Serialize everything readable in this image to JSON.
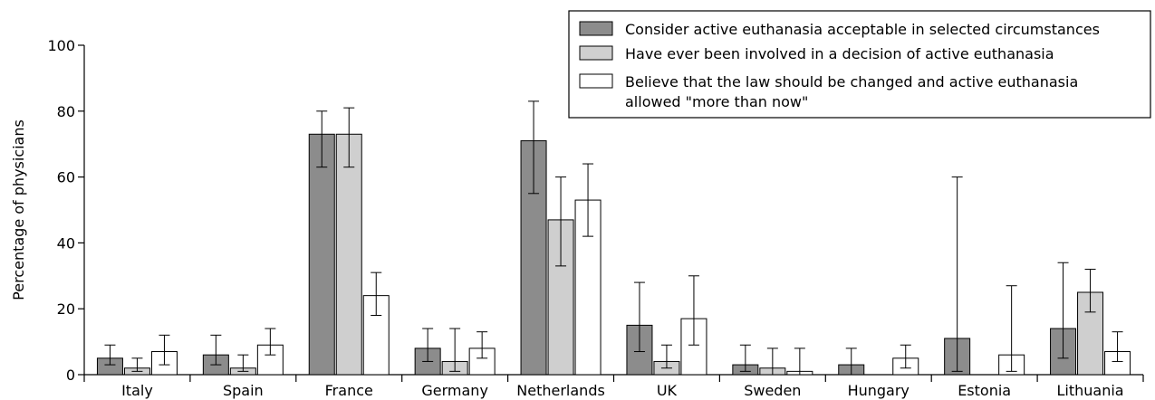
{
  "chart_data": {
    "type": "bar",
    "ylabel": "Percentage of physicians",
    "xlabel": "",
    "ylim": [
      0,
      100
    ],
    "yticks": [
      0,
      20,
      40,
      60,
      80,
      100
    ],
    "legend_placement": "top-right",
    "categories": [
      "Italy",
      "Spain",
      "France",
      "Germany",
      "Netherlands",
      "UK",
      "Sweden",
      "Hungary",
      "Estonia",
      "Lithuania"
    ],
    "series": [
      {
        "name": "Consider active euthanasia acceptable in selected circumstances",
        "color": "#8c8c8c",
        "values": [
          5,
          6,
          73,
          8,
          71,
          15,
          3,
          3,
          11,
          14
        ],
        "err_low": [
          3,
          3,
          63,
          4,
          55,
          7,
          1,
          0,
          1,
          5
        ],
        "err_high": [
          9,
          12,
          80,
          14,
          83,
          28,
          9,
          8,
          60,
          34
        ]
      },
      {
        "name": "Have ever been involved in a decision of active euthanasia",
        "color": "#cfcfcf",
        "values": [
          2,
          2,
          73,
          4,
          47,
          4,
          2,
          0,
          0,
          25
        ],
        "err_low": [
          1,
          1,
          63,
          1,
          33,
          2,
          0,
          null,
          null,
          19
        ],
        "err_high": [
          5,
          6,
          81,
          14,
          60,
          9,
          8,
          null,
          null,
          32
        ]
      },
      {
        "name": "Believe that the law should be changed and active euthanasia allowed \"more than now\"",
        "color": "#ffffff",
        "values": [
          7,
          9,
          24,
          8,
          53,
          17,
          1,
          5,
          6,
          7
        ],
        "err_low": [
          3,
          6,
          18,
          5,
          42,
          9,
          0,
          2,
          1,
          4
        ],
        "err_high": [
          12,
          14,
          31,
          13,
          64,
          30,
          8,
          9,
          27,
          13
        ]
      }
    ]
  }
}
